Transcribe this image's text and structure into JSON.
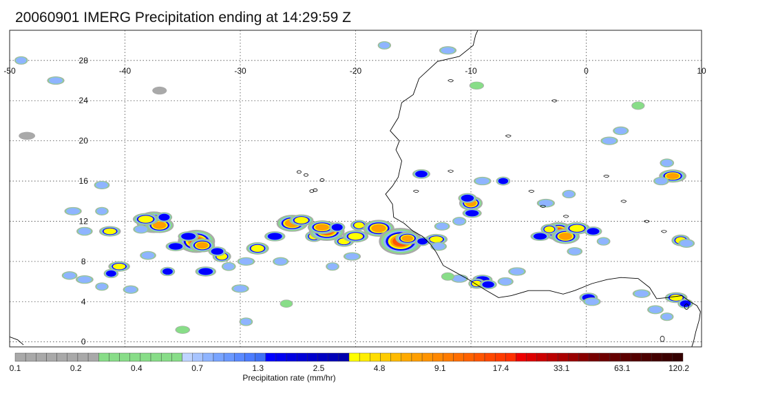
{
  "title": "20060901 IMERG Precipitation ending at 14:29:59 Z",
  "map": {
    "lon_range": [
      -50,
      10
    ],
    "lat_range": [
      -0.5,
      31
    ],
    "lon_ticks": [
      "-50",
      "-40",
      "-30",
      "-20",
      "-10",
      "0",
      "10"
    ],
    "lat_ticks": [
      "28",
      "24",
      "20",
      "16",
      "12",
      "8",
      "4",
      "0"
    ],
    "gridlines": true
  },
  "colorbar": {
    "title": "Precipitation rate (mm/hr)",
    "labels": [
      "0.1",
      "0.2",
      "0.4",
      "0.7",
      "1.3",
      "2.5",
      "4.8",
      "9.1",
      "17.4",
      "33.1",
      "63.1",
      "120.2"
    ],
    "colors": [
      "#a9a9a9",
      "#a9a9a9",
      "#a9a9a9",
      "#a9a9a9",
      "#a9a9a9",
      "#a9a9a9",
      "#a9a9a9",
      "#a9a9a9",
      "#88dd88",
      "#88dd88",
      "#88dd88",
      "#88dd88",
      "#88dd88",
      "#88dd88",
      "#88dd88",
      "#88dd88",
      "#bfd4ff",
      "#a7c4ff",
      "#8fb4ff",
      "#78a4ff",
      "#6a98ff",
      "#5a89ff",
      "#4c7cff",
      "#3f70f5",
      "#0000ff",
      "#0000f0",
      "#0000e0",
      "#0000d6",
      "#0000cc",
      "#0000c2",
      "#0000b8",
      "#0000ad",
      "#ffff00",
      "#ffee00",
      "#ffdd00",
      "#ffcc00",
      "#ffbb00",
      "#ffaa00",
      "#ff9f00",
      "#ff9400",
      "#ff8800",
      "#ff7b00",
      "#ff6e00",
      "#ff6200",
      "#ff5500",
      "#ff4800",
      "#ff3c00",
      "#ff3000",
      "#ee0000",
      "#dd0000",
      "#cc0000",
      "#bb0000",
      "#aa0000",
      "#990000",
      "#880000",
      "#770000",
      "#6e0000",
      "#650000",
      "#5c0000",
      "#540000",
      "#4c0000",
      "#440000",
      "#3c0000",
      "#340000"
    ]
  },
  "chart_data": {
    "type": "heatmap",
    "variable": "Precipitation rate (mm/hr)",
    "lon_range": [
      -50,
      10
    ],
    "lat_range": [
      -0.5,
      31
    ],
    "cells": [
      [
        -37.5,
        11.9,
        18
      ],
      [
        -37.0,
        11.6,
        10
      ],
      [
        -38.2,
        12.2,
        6
      ],
      [
        -36.6,
        12.4,
        3
      ],
      [
        -38.6,
        11.2,
        1.2
      ],
      [
        -41.3,
        11.0,
        3.5
      ],
      [
        -42.0,
        13.0,
        0.9
      ],
      [
        -43.5,
        11.0,
        1.4
      ],
      [
        -44.5,
        13.0,
        0.8
      ],
      [
        -33.8,
        10.0,
        20
      ],
      [
        -33.3,
        9.6,
        8
      ],
      [
        -34.5,
        10.5,
        3
      ],
      [
        -31.6,
        8.5,
        5
      ],
      [
        -32.0,
        9.0,
        2.5
      ],
      [
        -35.6,
        9.5,
        2.5
      ],
      [
        -36.3,
        7.0,
        2.0
      ],
      [
        -38.0,
        8.6,
        1.4
      ],
      [
        -40.5,
        7.5,
        3.5
      ],
      [
        -41.2,
        6.8,
        2.0
      ],
      [
        -44.8,
        6.6,
        1.0
      ],
      [
        -43.5,
        6.2,
        1.0
      ],
      [
        -42.0,
        5.5,
        0.8
      ],
      [
        -39.5,
        5.2,
        0.9
      ],
      [
        -33.0,
        7.0,
        3.0
      ],
      [
        -31.0,
        7.5,
        1.5
      ],
      [
        -28.5,
        9.3,
        6
      ],
      [
        -27.0,
        10.5,
        3
      ],
      [
        -26.0,
        12.0,
        2.5
      ],
      [
        -25.5,
        11.8,
        12
      ],
      [
        -24.7,
        12.1,
        5
      ],
      [
        -23.6,
        10.5,
        4.5
      ],
      [
        -22.5,
        11.0,
        15
      ],
      [
        -22.9,
        11.4,
        8
      ],
      [
        -21.6,
        11.4,
        3
      ],
      [
        -21.0,
        10.0,
        4
      ],
      [
        -20.0,
        10.5,
        6
      ],
      [
        -19.7,
        11.6,
        4
      ],
      [
        -18.0,
        11.3,
        12
      ],
      [
        -17.0,
        10.5,
        3
      ],
      [
        -16.1,
        10.0,
        25
      ],
      [
        -15.5,
        10.3,
        7
      ],
      [
        -13.0,
        10.2,
        4
      ],
      [
        -14.2,
        10.0,
        2
      ],
      [
        -12.8,
        9.5,
        1.5
      ],
      [
        -20.3,
        8.5,
        0.8
      ],
      [
        -22.0,
        7.5,
        0.9
      ],
      [
        -26.5,
        8.0,
        1.2
      ],
      [
        -29.5,
        8.0,
        1.0
      ],
      [
        -10.0,
        13.8,
        9
      ],
      [
        -10.3,
        14.3,
        3
      ],
      [
        -9.9,
        12.8,
        2
      ],
      [
        -11.0,
        12.0,
        1.4
      ],
      [
        -12.5,
        11.5,
        1.0
      ],
      [
        -9.0,
        6.2,
        2.5
      ],
      [
        -9.5,
        5.8,
        3.5
      ],
      [
        -8.5,
        5.7,
        2.2
      ],
      [
        -11.0,
        6.3,
        0.9
      ],
      [
        -12.0,
        6.5,
        0.7
      ],
      [
        -7.0,
        6.0,
        1.2
      ],
      [
        -6.0,
        7.0,
        1.0
      ],
      [
        -2.4,
        11.0,
        14
      ],
      [
        -1.8,
        10.5,
        10
      ],
      [
        -0.8,
        11.3,
        6
      ],
      [
        -3.2,
        11.2,
        4
      ],
      [
        0.6,
        11.0,
        2.5
      ],
      [
        -4.0,
        10.5,
        2.0
      ],
      [
        1.5,
        10.0,
        1.0
      ],
      [
        -1.0,
        9.0,
        1.0
      ],
      [
        -3.5,
        13.8,
        1.2
      ],
      [
        -1.5,
        14.7,
        1.0
      ],
      [
        0.2,
        4.4,
        3.0
      ],
      [
        0.5,
        4.0,
        1.0
      ],
      [
        8.2,
        10.1,
        5
      ],
      [
        8.7,
        9.8,
        1.5
      ],
      [
        7.5,
        16.5,
        7
      ],
      [
        7.0,
        17.8,
        1.5
      ],
      [
        6.5,
        16.0,
        1.0
      ],
      [
        7.8,
        4.4,
        4.0
      ],
      [
        8.6,
        3.8,
        2.5
      ],
      [
        6.0,
        3.2,
        1.5
      ],
      [
        4.8,
        4.8,
        1.2
      ],
      [
        7.0,
        2.5,
        0.8
      ],
      [
        3.0,
        21.0,
        1.2
      ],
      [
        2.0,
        20.0,
        0.9
      ],
      [
        4.5,
        23.5,
        0.7
      ],
      [
        -14.3,
        16.7,
        2.5
      ],
      [
        -9.0,
        16.0,
        1.0
      ],
      [
        -7.2,
        16.0,
        1.6
      ],
      [
        -42.0,
        15.6,
        1.0
      ],
      [
        -46.0,
        26.0,
        0.8
      ],
      [
        -49.0,
        28.0,
        0.9
      ],
      [
        -37.0,
        25.0,
        0.2
      ],
      [
        -12.0,
        29.0,
        0.8
      ],
      [
        -17.5,
        29.5,
        0.8
      ],
      [
        -9.5,
        25.5,
        0.3
      ],
      [
        -48.5,
        20.5,
        0.2
      ],
      [
        -29.5,
        2.0,
        1.0
      ],
      [
        -35.0,
        1.2,
        0.4
      ],
      [
        -30.0,
        5.3,
        0.9
      ],
      [
        -26.0,
        3.8,
        0.4
      ]
    ]
  },
  "land": {
    "color": "#000000"
  }
}
